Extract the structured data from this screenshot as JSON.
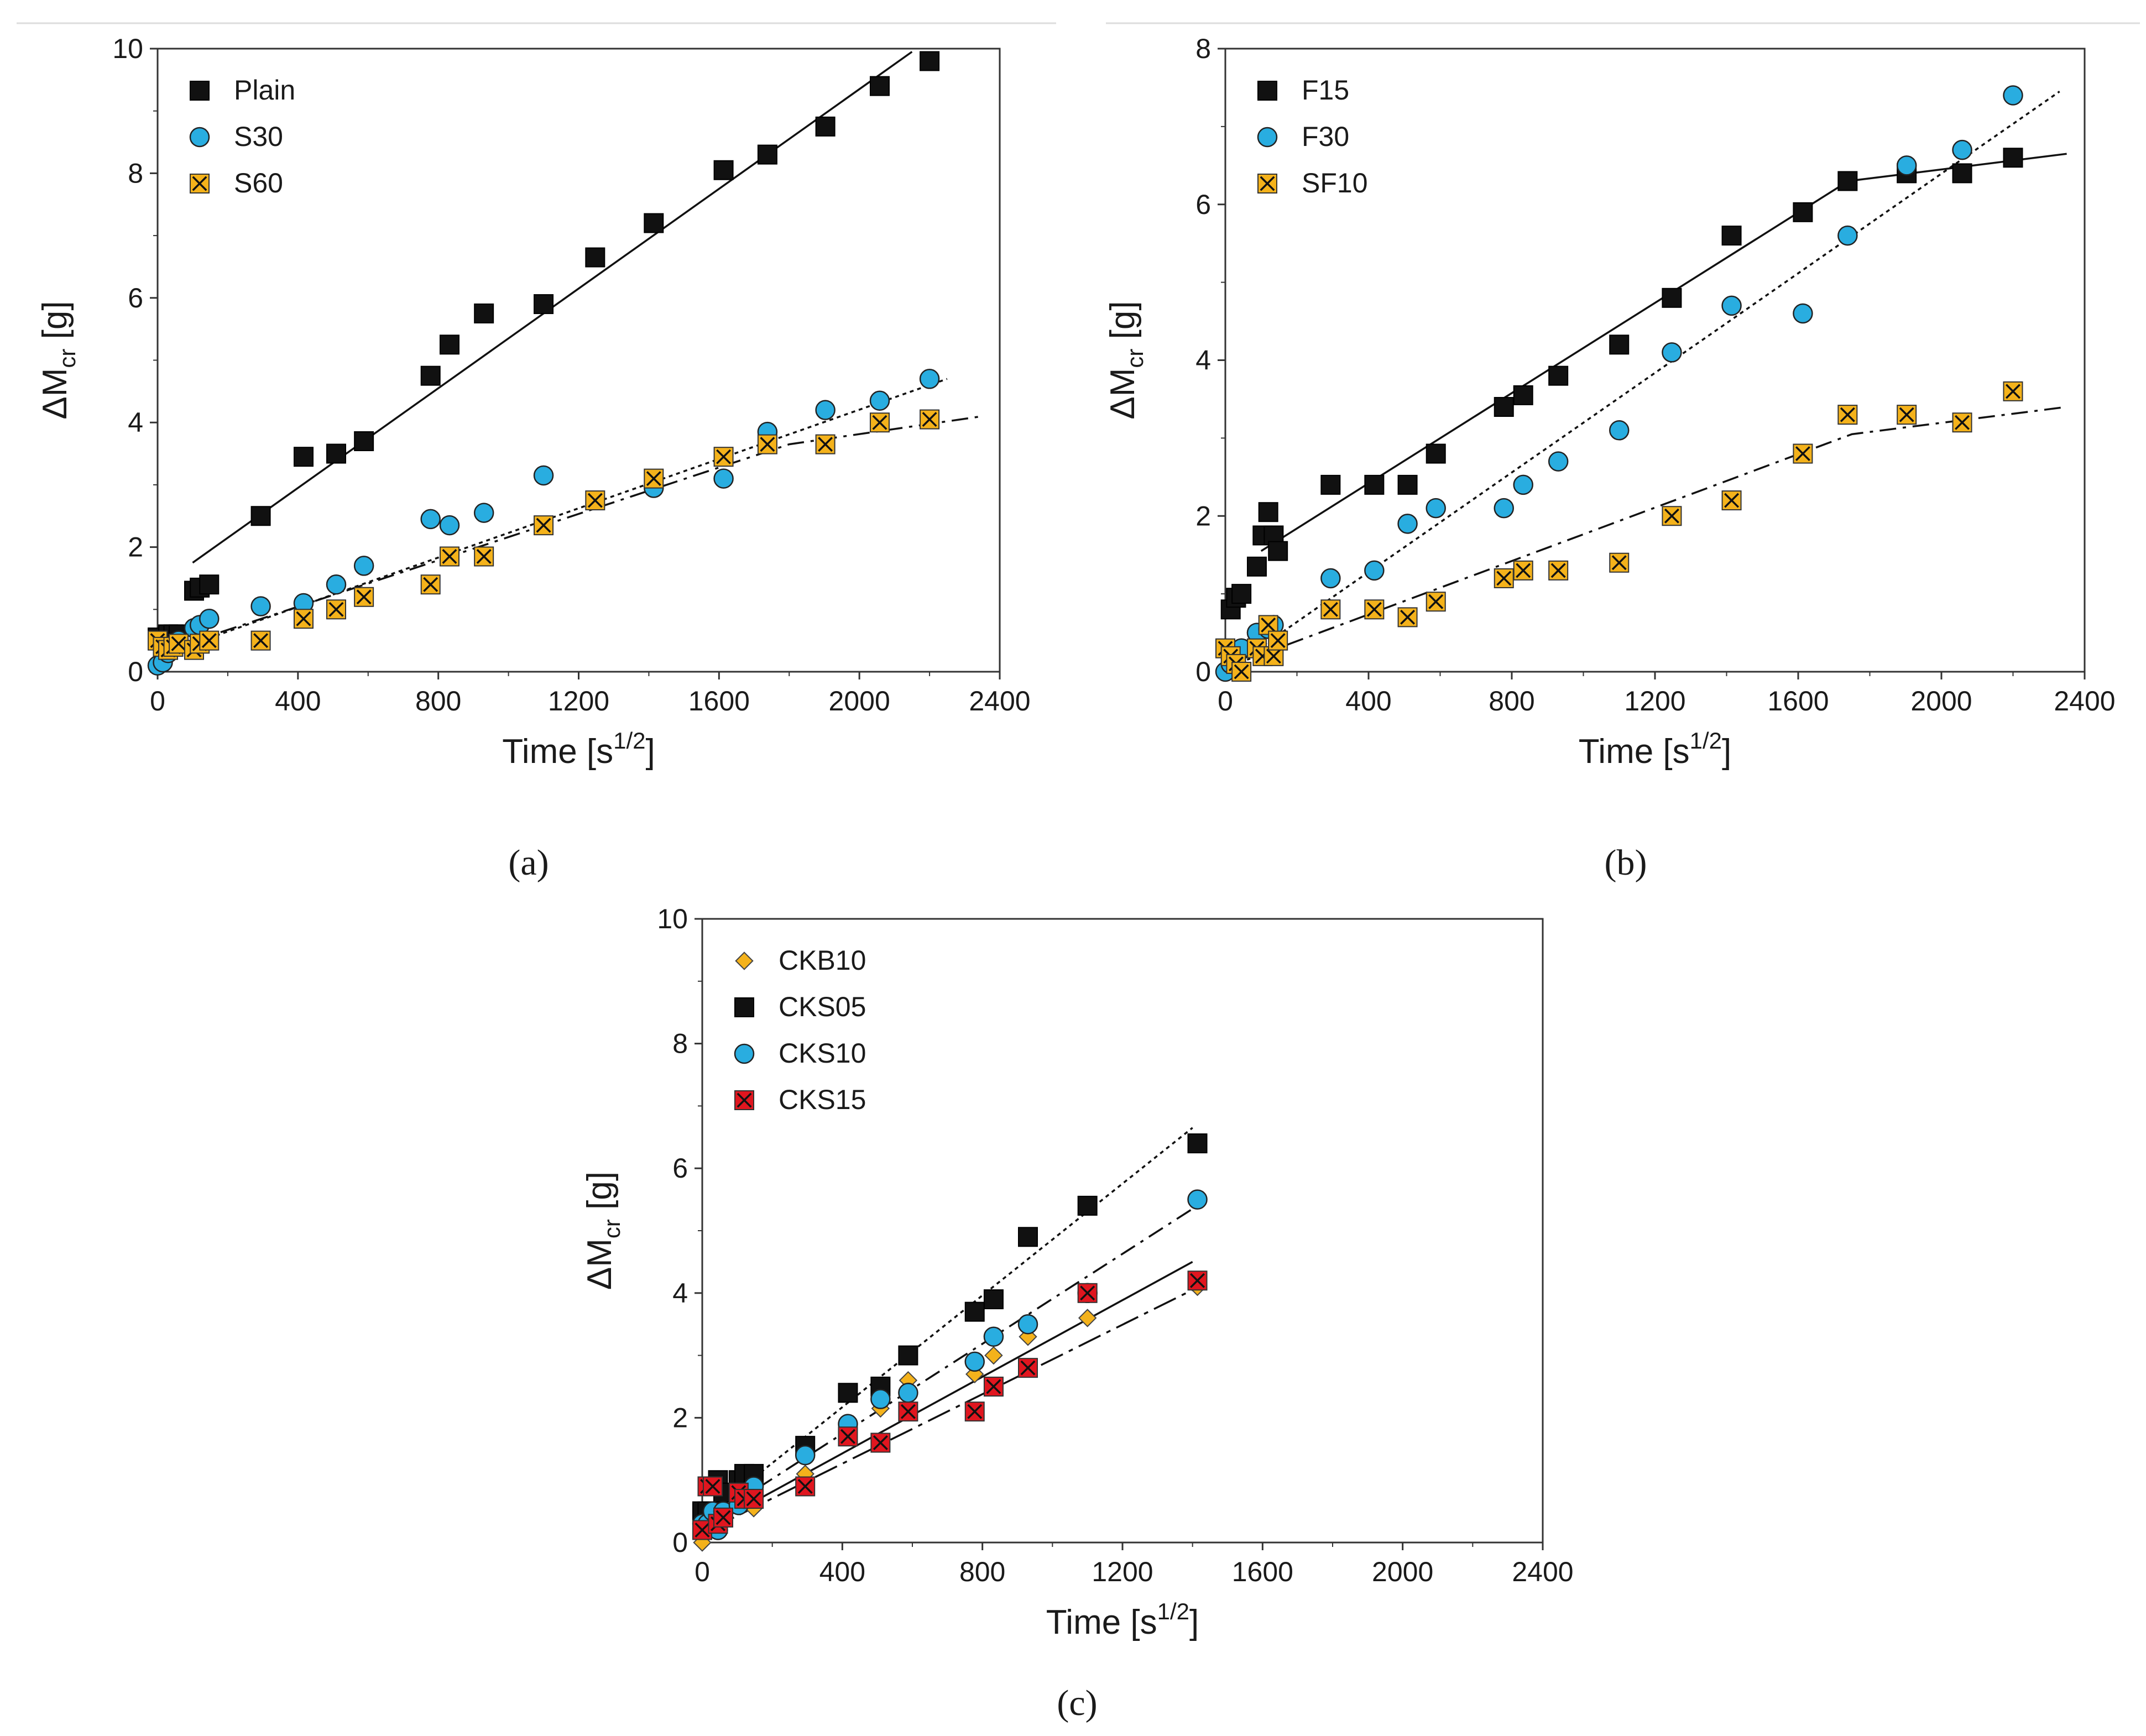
{
  "figure": {
    "panel_labels": [
      "(a)",
      "(b)",
      "(c)"
    ]
  },
  "colors": {
    "black_marker": "#111111",
    "blue_marker": "#29ade0",
    "yellow_marker": "#f4b21b",
    "red_marker": "#e0161f",
    "diamond_marker": "#f4b21b",
    "axis": "#333333"
  },
  "chart_data": [
    {
      "id": "a",
      "type": "scatter",
      "xlabel_main": "Time [s",
      "xlabel_sup": "1/2",
      "xlabel_end": "]",
      "ylabel_main": "ΔM",
      "ylabel_sub": "cr",
      "ylabel_end": " [g]",
      "xlim": [
        0,
        2400
      ],
      "ylim": [
        0,
        10
      ],
      "xticks": [
        "0",
        "400",
        "800",
        "1200",
        "1600",
        "2000",
        "2400"
      ],
      "yticks": [
        "0",
        "2",
        "4",
        "6",
        "8",
        "10"
      ],
      "series": [
        {
          "name": "Plain",
          "marker": "square",
          "color": "#111111",
          "x": [
            0,
            15,
            30,
            45,
            60,
            104,
            120,
            147,
            294,
            416,
            509,
            588,
            778,
            832,
            930,
            1100,
            1247,
            1414,
            1613,
            1738,
            1903,
            2058,
            2200
          ],
          "y": [
            0.55,
            0.5,
            0.6,
            0.6,
            0.6,
            1.3,
            1.35,
            1.4,
            2.5,
            3.45,
            3.5,
            3.7,
            4.75,
            5.25,
            5.75,
            5.9,
            6.65,
            7.2,
            8.05,
            8.3,
            8.75,
            9.4,
            9.8
          ],
          "fit": {
            "style": "solid",
            "x": [
              100,
              2150
            ],
            "y": [
              1.75,
              9.95
            ]
          }
        },
        {
          "name": "S30",
          "marker": "circle",
          "color": "#29ade0",
          "x": [
            0,
            15,
            30,
            45,
            60,
            104,
            120,
            147,
            294,
            416,
            509,
            588,
            778,
            832,
            930,
            1100,
            1414,
            1613,
            1738,
            1903,
            2058,
            2200
          ],
          "y": [
            0.1,
            0.15,
            0.3,
            0.4,
            0.5,
            0.7,
            0.75,
            0.85,
            1.05,
            1.1,
            1.4,
            1.7,
            2.45,
            2.35,
            2.55,
            3.15,
            2.95,
            3.1,
            3.85,
            4.2,
            4.35,
            4.7
          ],
          "fit": {
            "style": "dotted",
            "x": [
              0,
              2250
            ],
            "y": [
              0.25,
              4.7
            ]
          }
        },
        {
          "name": "S60",
          "marker": "xbox",
          "color": "#f4b21b",
          "x": [
            0,
            15,
            30,
            45,
            60,
            104,
            120,
            147,
            294,
            416,
            509,
            588,
            778,
            832,
            930,
            1100,
            1247,
            1414,
            1613,
            1738,
            1903,
            2058,
            2200
          ],
          "y": [
            0.5,
            0.4,
            0.35,
            0.4,
            0.45,
            0.35,
            0.45,
            0.5,
            0.5,
            0.85,
            1.0,
            1.2,
            1.4,
            1.85,
            1.85,
            2.35,
            2.75,
            3.1,
            3.45,
            3.65,
            3.65,
            4.0,
            4.05
          ],
          "fit": {
            "style": "dashdot",
            "x": [
              0,
              1800,
              2350
            ],
            "y": [
              0.3,
              3.65,
              4.1
            ]
          }
        }
      ]
    },
    {
      "id": "b",
      "type": "scatter",
      "xlabel_main": "Time [s",
      "xlabel_sup": "1/2",
      "xlabel_end": "]",
      "ylabel_main": "ΔM",
      "ylabel_sub": "cr",
      "ylabel_end": " [g]",
      "xlim": [
        0,
        2400
      ],
      "ylim": [
        0,
        8
      ],
      "xticks": [
        "0",
        "400",
        "800",
        "1200",
        "1600",
        "2000",
        "2400"
      ],
      "yticks": [
        "0",
        "2",
        "4",
        "6",
        "8"
      ],
      "series": [
        {
          "name": "F15",
          "marker": "square",
          "color": "#111111",
          "x": [
            15,
            30,
            45,
            88,
            104,
            120,
            135,
            147,
            294,
            416,
            509,
            588,
            778,
            832,
            930,
            1100,
            1247,
            1414,
            1613,
            1738,
            1903,
            2058,
            2200
          ],
          "y": [
            0.8,
            0.95,
            1.0,
            1.35,
            1.75,
            2.05,
            1.75,
            1.55,
            2.4,
            2.4,
            2.4,
            2.8,
            3.4,
            3.55,
            3.8,
            4.2,
            4.8,
            5.6,
            5.9,
            6.3,
            6.4,
            6.4,
            6.6
          ],
          "fit": {
            "style": "solid",
            "x": [
              100,
              1740,
              2350
            ],
            "y": [
              1.55,
              6.3,
              6.65
            ]
          }
        },
        {
          "name": "F30",
          "marker": "circle",
          "color": "#29ade0",
          "x": [
            0,
            15,
            30,
            45,
            88,
            120,
            135,
            294,
            416,
            509,
            588,
            778,
            832,
            930,
            1100,
            1247,
            1414,
            1613,
            1738,
            1903,
            2058,
            2200
          ],
          "y": [
            0.0,
            0.1,
            0.2,
            0.3,
            0.5,
            0.55,
            0.6,
            1.2,
            1.3,
            1.9,
            2.1,
            2.1,
            2.4,
            2.7,
            3.1,
            4.1,
            4.7,
            4.6,
            5.6,
            6.5,
            6.7,
            7.4
          ],
          "fit": {
            "style": "dotted",
            "x": [
              0,
              2330
            ],
            "y": [
              0.0,
              7.45
            ]
          }
        },
        {
          "name": "SF10",
          "marker": "xbox",
          "color": "#f4b21b",
          "x": [
            0,
            15,
            30,
            45,
            88,
            104,
            120,
            135,
            147,
            294,
            416,
            509,
            588,
            778,
            832,
            930,
            1100,
            1247,
            1414,
            1613,
            1738,
            1903,
            2058,
            2200
          ],
          "y": [
            0.3,
            0.2,
            0.1,
            0.0,
            0.3,
            0.2,
            0.6,
            0.2,
            0.4,
            0.8,
            0.8,
            0.7,
            0.9,
            1.2,
            1.3,
            1.3,
            1.4,
            2.0,
            2.2,
            2.8,
            3.3,
            3.3,
            3.2,
            3.6
          ],
          "fit": {
            "style": "dashdot",
            "x": [
              0,
              1750,
              2350
            ],
            "y": [
              0.05,
              3.05,
              3.4
            ]
          }
        }
      ]
    },
    {
      "id": "c",
      "type": "scatter",
      "xlabel_main": "Time [s",
      "xlabel_sup": "1/2",
      "xlabel_end": "]",
      "ylabel_main": "ΔM",
      "ylabel_sub": "cr",
      "ylabel_end": " [g]",
      "xlim": [
        0,
        2400
      ],
      "ylim": [
        0,
        10
      ],
      "xticks": [
        "0",
        "400",
        "800",
        "1200",
        "1600",
        "2000",
        "2400"
      ],
      "yticks": [
        "0",
        "2",
        "4",
        "6",
        "8",
        "10"
      ],
      "series": [
        {
          "name": "CKB10",
          "marker": "diamond",
          "color": "#f4b21b",
          "x": [
            0,
            15,
            30,
            45,
            60,
            104,
            120,
            147,
            294,
            416,
            509,
            588,
            778,
            832,
            930,
            1100,
            1414
          ],
          "y": [
            0.0,
            0.3,
            0.4,
            0.5,
            0.5,
            0.6,
            0.7,
            0.55,
            1.1,
            1.7,
            2.15,
            2.6,
            2.7,
            3.0,
            3.3,
            3.6,
            4.1
          ],
          "fit": {
            "style": "solid",
            "x": [
              0,
              1400
            ],
            "y": [
              0.2,
              4.5
            ]
          }
        },
        {
          "name": "CKS05",
          "marker": "square",
          "color": "#111111",
          "x": [
            0,
            15,
            30,
            45,
            60,
            104,
            120,
            147,
            294,
            416,
            509,
            588,
            778,
            832,
            930,
            1100,
            1414
          ],
          "y": [
            0.5,
            0.5,
            0.9,
            1.0,
            0.8,
            1.0,
            1.1,
            1.1,
            1.55,
            2.4,
            2.5,
            3.0,
            3.7,
            3.9,
            4.9,
            5.4,
            6.4
          ],
          "fit": {
            "style": "dotted",
            "x": [
              150,
              1400
            ],
            "y": [
              1.05,
              6.65
            ]
          }
        },
        {
          "name": "CKS10",
          "marker": "circle",
          "color": "#29ade0",
          "x": [
            0,
            15,
            30,
            45,
            60,
            104,
            120,
            147,
            294,
            416,
            509,
            588,
            778,
            832,
            930,
            1100,
            1414
          ],
          "y": [
            0.3,
            0.3,
            0.5,
            0.2,
            0.5,
            0.6,
            0.7,
            0.9,
            1.4,
            1.9,
            2.3,
            2.4,
            2.9,
            3.3,
            3.5,
            4.0,
            5.5
          ],
          "fit": {
            "style": "dashdot",
            "x": [
              0,
              1400
            ],
            "y": [
              0.3,
              5.35
            ]
          }
        },
        {
          "name": "CKS15",
          "marker": "xbox",
          "color": "#e0161f",
          "x": [
            0,
            15,
            30,
            45,
            60,
            104,
            120,
            147,
            294,
            416,
            509,
            588,
            778,
            832,
            930,
            1100,
            1414
          ],
          "y": [
            0.2,
            0.9,
            0.9,
            0.3,
            0.4,
            0.8,
            0.7,
            0.7,
            0.9,
            1.7,
            1.6,
            2.1,
            2.1,
            2.5,
            2.8,
            4.0,
            4.2
          ],
          "fit": {
            "style": "dashdot2",
            "x": [
              0,
              1400
            ],
            "y": [
              0.15,
              4.05
            ]
          }
        }
      ]
    }
  ]
}
